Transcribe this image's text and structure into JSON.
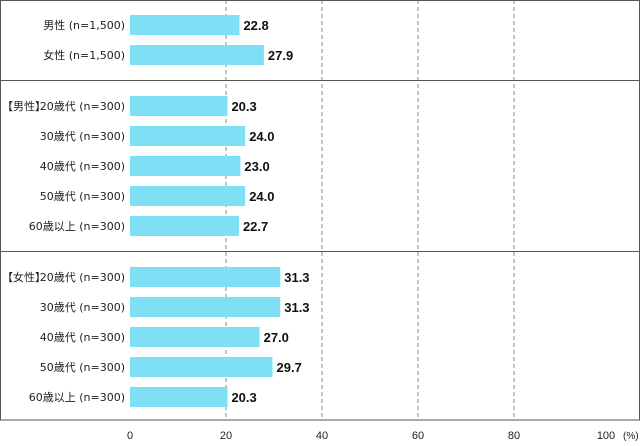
{
  "chart_data": {
    "type": "bar",
    "orientation": "horizontal",
    "xlim": [
      0,
      100
    ],
    "x_ticks": [
      "0",
      "20",
      "40",
      "60",
      "80",
      "100"
    ],
    "x_unit": "(%)",
    "grid": "vertical-dashed",
    "bar_color": "#7fe0f5",
    "groups": [
      {
        "name": "",
        "rows": [
          {
            "label": "男性 (n=1,500)",
            "value": 22.8,
            "value_label": "22.8"
          },
          {
            "label": "女性 (n=1,500)",
            "value": 27.9,
            "value_label": "27.9"
          }
        ]
      },
      {
        "name": "【男性】",
        "rows": [
          {
            "label": "20歳代 (n=300)",
            "value": 20.3,
            "value_label": "20.3"
          },
          {
            "label": "30歳代 (n=300)",
            "value": 24.0,
            "value_label": "24.0"
          },
          {
            "label": "40歳代 (n=300)",
            "value": 23.0,
            "value_label": "23.0"
          },
          {
            "label": "50歳代 (n=300)",
            "value": 24.0,
            "value_label": "24.0"
          },
          {
            "label": "60歳以上 (n=300)",
            "value": 22.7,
            "value_label": "22.7"
          }
        ]
      },
      {
        "name": "【女性】",
        "rows": [
          {
            "label": "20歳代 (n=300)",
            "value": 31.3,
            "value_label": "31.3"
          },
          {
            "label": "30歳代 (n=300)",
            "value": 31.3,
            "value_label": "31.3"
          },
          {
            "label": "40歳代 (n=300)",
            "value": 27.0,
            "value_label": "27.0"
          },
          {
            "label": "50歳代 (n=300)",
            "value": 29.7,
            "value_label": "29.7"
          },
          {
            "label": "60歳以上 (n=300)",
            "value": 20.3,
            "value_label": "20.3"
          }
        ]
      }
    ]
  }
}
